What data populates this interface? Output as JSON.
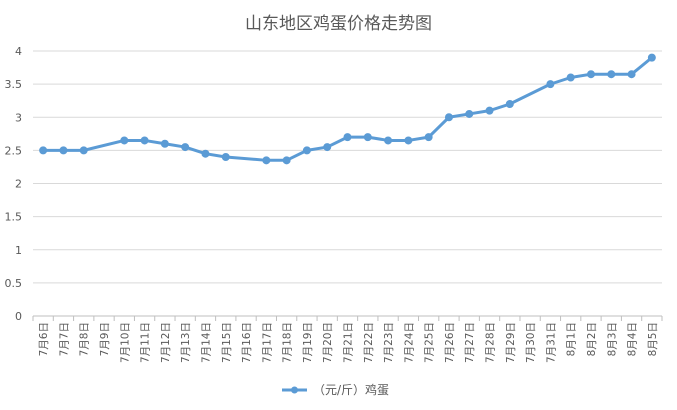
{
  "chart_data": {
    "type": "line",
    "title": "山东地区鸡蛋价格走势图",
    "xlabel": "",
    "ylabel": "",
    "ylim": [
      0,
      4
    ],
    "yticks": [
      0,
      0.5,
      1,
      1.5,
      2,
      2.5,
      3,
      3.5,
      4
    ],
    "grid": true,
    "legend": "bottom",
    "color": "#5B9BD5",
    "categories": [
      "7月6日",
      "7月7日",
      "7月8日",
      "7月9日",
      "7月10日",
      "7月11日",
      "7月12日",
      "7月13日",
      "7月14日",
      "7月15日",
      "7月16日",
      "7月17日",
      "7月18日",
      "7月19日",
      "7月20日",
      "7月21日",
      "7月22日",
      "7月23日",
      "7月24日",
      "7月25日",
      "7月26日",
      "7月27日",
      "7月28日",
      "7月29日",
      "7月30日",
      "7月31日",
      "8月1日",
      "8月2日",
      "8月3日",
      "8月4日",
      "8月5日"
    ],
    "series": [
      {
        "name": "（元/斤）鸡蛋",
        "values": [
          2.5,
          2.5,
          2.5,
          null,
          2.65,
          2.65,
          2.6,
          2.55,
          2.45,
          2.4,
          null,
          2.35,
          2.35,
          2.5,
          2.55,
          2.7,
          2.7,
          2.65,
          2.65,
          2.7,
          3.0,
          3.05,
          3.1,
          3.2,
          null,
          3.5,
          3.6,
          3.65,
          3.65,
          3.65,
          3.9
        ]
      }
    ]
  }
}
